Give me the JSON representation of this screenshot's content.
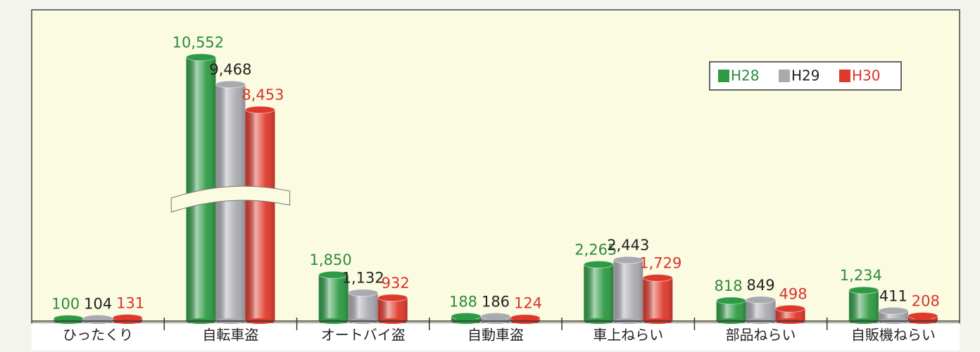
{
  "chart_data": {
    "type": "bar",
    "categories": [
      "ひったくり",
      "自転車盗",
      "オートバイ盗",
      "自動車盗",
      "車上ねらい",
      "部品ねらい",
      "自販機ねらい"
    ],
    "series": [
      {
        "name": "H28",
        "color": "#2e9a44",
        "values": [
          100,
          10552,
          1850,
          188,
          2265,
          818,
          1234
        ],
        "value_labels": [
          "100",
          "10,552",
          "1,850",
          "188",
          "2,265",
          "818",
          "1,234"
        ]
      },
      {
        "name": "H29",
        "color": "#a9aab0",
        "values": [
          104,
          9468,
          1132,
          186,
          2443,
          849,
          411
        ],
        "value_labels": [
          "104",
          "9,468",
          "1,132",
          "186",
          "2,443",
          "849",
          "411"
        ]
      },
      {
        "name": "H30",
        "color": "#de3a2c",
        "values": [
          131,
          8453,
          932,
          124,
          1729,
          498,
          208
        ],
        "value_labels": [
          "131",
          "8,453",
          "932",
          "124",
          "1,729",
          "498",
          "208"
        ]
      }
    ],
    "ylim": [
      0,
      12000
    ],
    "axis_break": true,
    "legend": "upper right"
  }
}
